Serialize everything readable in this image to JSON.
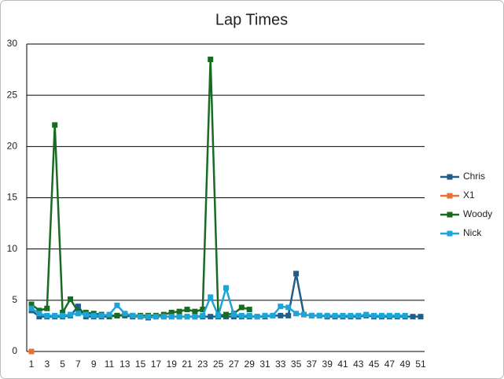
{
  "chart_data": {
    "type": "line",
    "title": "Lap Times",
    "categories": [
      1,
      null,
      3,
      null,
      5,
      null,
      7,
      null,
      9,
      null,
      11,
      null,
      13,
      null,
      15,
      null,
      17,
      null,
      19,
      null,
      21,
      null,
      23,
      null,
      25,
      null,
      27,
      null,
      29,
      null,
      31,
      null,
      33,
      null,
      35,
      null,
      37,
      null,
      39,
      null,
      41,
      null,
      43,
      null,
      45,
      null,
      47,
      null,
      49,
      null,
      51
    ],
    "series": [
      {
        "name": "Chris",
        "color": "#1f5e8a",
        "values": [
          4.0,
          3.4,
          3.4,
          3.4,
          3.4,
          3.5,
          4.4,
          3.4,
          3.4,
          3.4,
          3.4,
          3.5,
          3.5,
          3.4,
          3.4,
          3.3,
          3.4,
          3.4,
          3.4,
          3.4,
          3.4,
          3.4,
          3.4,
          3.4,
          3.4,
          3.4,
          3.4,
          3.4,
          3.4,
          3.4,
          3.4,
          3.5,
          3.5,
          3.5,
          7.6,
          3.6,
          3.5,
          3.5,
          3.4,
          3.4,
          3.4,
          3.4,
          3.4,
          3.5,
          3.4,
          3.4,
          3.4,
          3.4,
          3.4,
          3.4,
          3.4
        ]
      },
      {
        "name": "X1",
        "color": "#e97132",
        "values": [
          0,
          null,
          null,
          null,
          null,
          null,
          null,
          null,
          null,
          null,
          null,
          null,
          null,
          null,
          null,
          null,
          null,
          null,
          null,
          null,
          null,
          null,
          null,
          null,
          null,
          null,
          null,
          null,
          null,
          null,
          null,
          null,
          null,
          null,
          null,
          null,
          null,
          null,
          null,
          null,
          null,
          null,
          null,
          null,
          null,
          null,
          null,
          null,
          null,
          null,
          null
        ]
      },
      {
        "name": "Woody",
        "color": "#196b24",
        "values": [
          4.6,
          4.0,
          4.2,
          22.1,
          3.8,
          5.1,
          3.9,
          3.8,
          3.7,
          3.6,
          3.5,
          3.5,
          3.6,
          3.5,
          3.5,
          3.5,
          3.5,
          3.6,
          3.8,
          3.9,
          4.1,
          3.9,
          4.1,
          28.5,
          3.5,
          3.6,
          3.7,
          4.3,
          4.1,
          null,
          null,
          null,
          null,
          null,
          null,
          null,
          null,
          null,
          null,
          null,
          null,
          null,
          null,
          null,
          null,
          null,
          null,
          null,
          null,
          null,
          null
        ]
      },
      {
        "name": "Nick",
        "color": "#1ea5d8",
        "values": [
          4.2,
          3.7,
          3.5,
          3.5,
          3.5,
          3.6,
          3.7,
          3.6,
          3.5,
          3.5,
          3.6,
          4.5,
          3.7,
          3.5,
          3.4,
          3.4,
          3.4,
          3.4,
          3.4,
          3.4,
          3.4,
          3.4,
          3.5,
          5.3,
          3.5,
          6.2,
          3.6,
          3.5,
          3.5,
          3.4,
          3.5,
          3.5,
          4.4,
          4.3,
          3.7,
          3.6,
          3.5,
          3.5,
          3.5,
          3.5,
          3.5,
          3.5,
          3.5,
          3.6,
          3.5,
          3.5,
          3.5,
          3.5,
          3.5,
          null,
          null
        ]
      }
    ],
    "ylim": [
      0,
      30
    ],
    "yticks": [
      0,
      5,
      10,
      15,
      20,
      25,
      30
    ],
    "grid": true,
    "legend": "right"
  }
}
